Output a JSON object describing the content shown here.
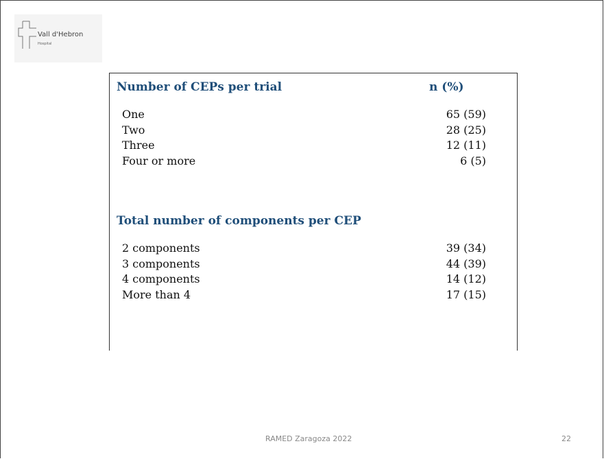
{
  "logo": {
    "name": "Vall d'Hebron",
    "sub": "Hospital"
  },
  "table": {
    "sections": [
      {
        "heading": "Number of CEPs per trial",
        "value_heading": "n (%)",
        "rows": [
          [
            "One",
            "65 (59)"
          ],
          [
            "Two",
            "28 (25)"
          ],
          [
            "Three",
            "12 (11)"
          ],
          [
            "Four or more",
            "6 (5)"
          ]
        ]
      },
      {
        "heading": "Total number of components per CEP",
        "rows": [
          [
            "2 components",
            "39 (34)"
          ],
          [
            "3 components",
            "44 (39)"
          ],
          [
            "4 components",
            "14 (12)"
          ],
          [
            "More than 4",
            "17 (15)"
          ]
        ]
      }
    ]
  },
  "footer": {
    "text": "RAMED Zaragoza 2022",
    "page": "22"
  }
}
